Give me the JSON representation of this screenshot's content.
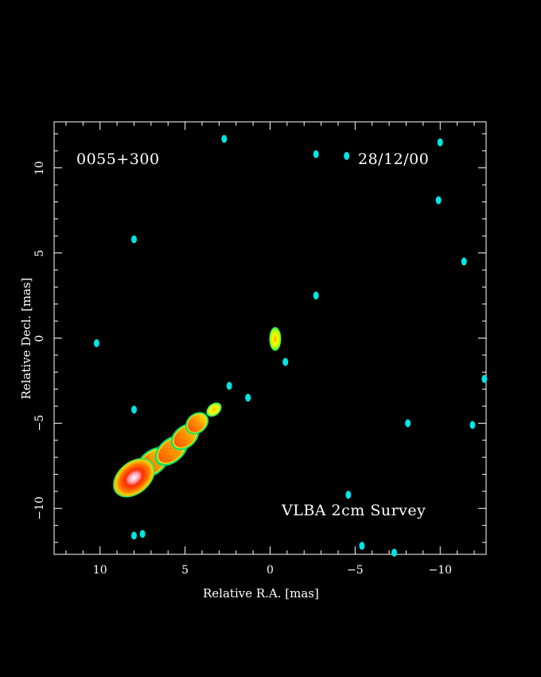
{
  "chart_data": {
    "type": "heatmap",
    "source_name": "0055+300",
    "date": "28/12/00",
    "survey_label": "VLBA 2cm Survey",
    "xlabel": "Relative R.A. [mas]",
    "ylabel": "Relative Decl. [mas]",
    "xlim": [
      12.7,
      -12.7
    ],
    "ylim": [
      -12.7,
      12.7
    ],
    "x_ticks": [
      "10",
      "5",
      "0",
      "−5",
      "−10"
    ],
    "x_tick_values": [
      10,
      5,
      0,
      -5,
      -10
    ],
    "y_ticks": [
      "10",
      "5",
      "0",
      "−5",
      "−10"
    ],
    "y_tick_values": [
      10,
      5,
      0,
      -5,
      -10
    ],
    "colorscale": [
      "#0000ff",
      "#00e5e5",
      "#00ff66",
      "#ffff00",
      "#ff8c00",
      "#ff2a00",
      "#ffffff"
    ],
    "background": "#000000",
    "emission": [
      {
        "name": "core",
        "x": -0.3,
        "y": -0.05,
        "peak_level": 3,
        "size_x": 0.35,
        "size_y": 0.7
      },
      {
        "name": "jet-main",
        "x": 8.0,
        "y": -8.2,
        "peak_level": 6
      },
      {
        "name": "jet-knot",
        "x": 3.3,
        "y": -4.2,
        "peak_level": 2
      }
    ],
    "noise_patches": [
      {
        "x": 8.0,
        "y": 5.8
      },
      {
        "x": 2.7,
        "y": 11.7
      },
      {
        "x": -2.7,
        "y": 10.8
      },
      {
        "x": -4.5,
        "y": 10.7
      },
      {
        "x": -10.0,
        "y": 11.5
      },
      {
        "x": -9.9,
        "y": 8.1
      },
      {
        "x": -11.4,
        "y": 4.5
      },
      {
        "x": -2.7,
        "y": 2.5
      },
      {
        "x": 10.2,
        "y": -0.3
      },
      {
        "x": -0.9,
        "y": -1.4
      },
      {
        "x": 2.4,
        "y": -2.8
      },
      {
        "x": 1.3,
        "y": -3.5
      },
      {
        "x": 8.0,
        "y": -4.2
      },
      {
        "x": -8.1,
        "y": -5.0
      },
      {
        "x": -11.9,
        "y": -5.1
      },
      {
        "x": -12.6,
        "y": -2.4
      },
      {
        "x": -4.6,
        "y": -9.2
      },
      {
        "x": 8.0,
        "y": -11.6
      },
      {
        "x": 7.5,
        "y": -11.5
      },
      {
        "x": -5.4,
        "y": -12.2
      },
      {
        "x": -7.3,
        "y": -12.6
      }
    ]
  }
}
